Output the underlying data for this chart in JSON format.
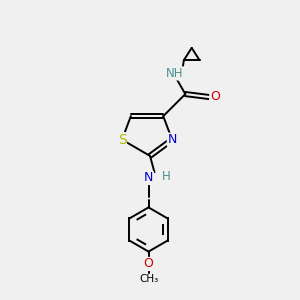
{
  "background_color": "#f0f0f0",
  "atom_colors": {
    "C": "#000000",
    "N": "#0000cc",
    "O": "#cc0000",
    "S": "#b8b800",
    "H": "#4a9090"
  },
  "bond_color": "#000000",
  "figsize": [
    3.0,
    3.0
  ],
  "dpi": 100,
  "lw": 1.4
}
